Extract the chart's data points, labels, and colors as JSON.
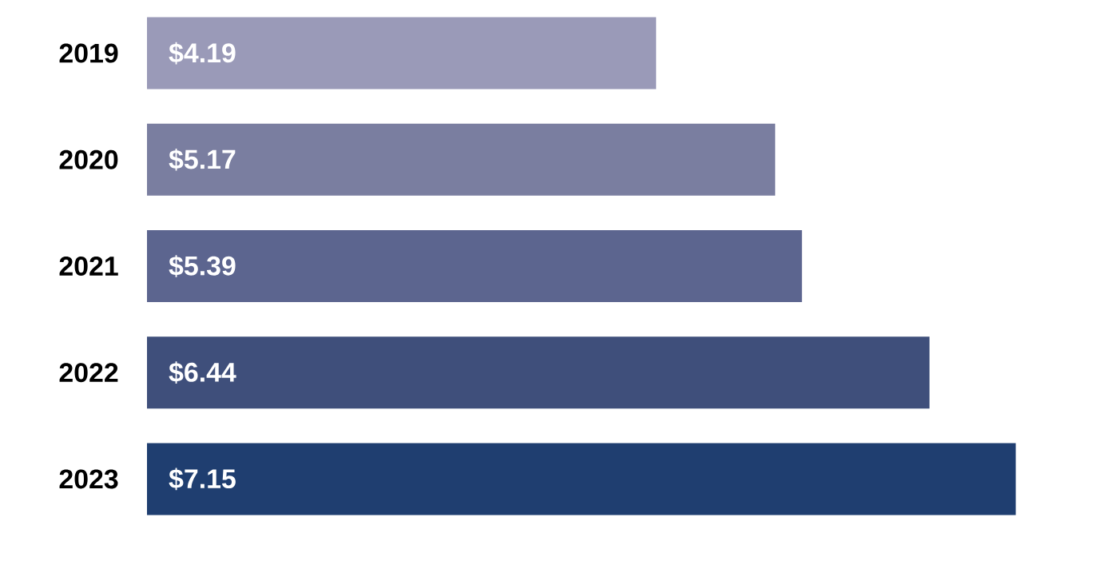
{
  "chart_data": {
    "type": "bar",
    "orientation": "horizontal",
    "categories": [
      "2019",
      "2020",
      "2021",
      "2022",
      "2023"
    ],
    "values": [
      4.19,
      5.17,
      5.39,
      6.44,
      7.15
    ],
    "value_labels": [
      "$4.19",
      "$5.17",
      "$5.39",
      "$6.44",
      "$7.15"
    ],
    "colors": [
      "#9a9ab8",
      "#7a7ea0",
      "#5c658f",
      "#3f4f7b",
      "#1f3e70"
    ]
  }
}
